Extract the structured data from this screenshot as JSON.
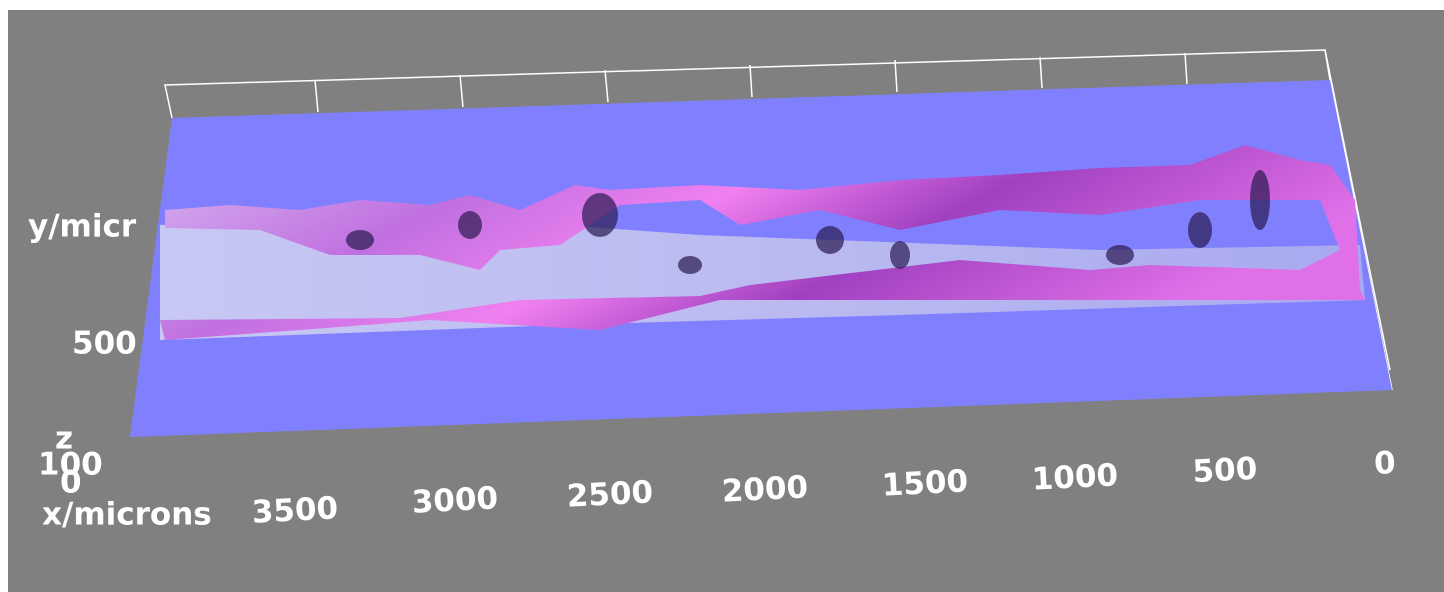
{
  "axes": {
    "x_label": "x/microns",
    "x_ticks": [
      "3500",
      "3000",
      "2500",
      "2000",
      "1500",
      "1000",
      "500",
      "0"
    ],
    "y_label": "y/micr",
    "y_ticks": [
      "500"
    ],
    "z_label": "z",
    "z_ticks": [
      "100",
      "0"
    ]
  }
}
